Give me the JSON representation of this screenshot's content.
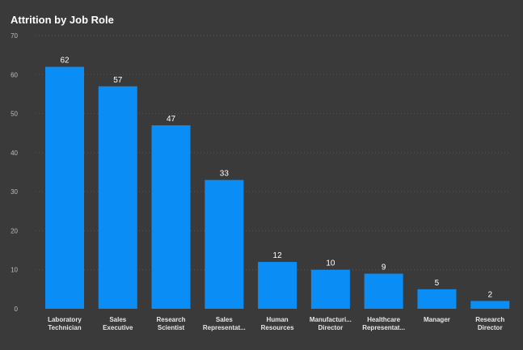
{
  "chart_data": {
    "type": "bar",
    "title": "Attrition by Job Role",
    "xlabel": "",
    "ylabel": "",
    "ylim": [
      0,
      70
    ],
    "yticks": [
      0,
      10,
      20,
      30,
      40,
      50,
      60,
      70
    ],
    "grid": true,
    "legend": "none",
    "bar_color": "#0a8ef5",
    "categories": [
      [
        "Laboratory",
        "Technician"
      ],
      [
        "Sales",
        "Executive"
      ],
      [
        "Research",
        "Scientist"
      ],
      [
        "Sales",
        "Representat..."
      ],
      [
        "Human",
        "Resources"
      ],
      [
        "Manufacturi...",
        "Director"
      ],
      [
        "Healthcare",
        "Representat..."
      ],
      [
        "Manager"
      ],
      [
        "Research",
        "Director"
      ]
    ],
    "values": [
      62,
      57,
      47,
      33,
      12,
      10,
      9,
      5,
      2
    ]
  }
}
